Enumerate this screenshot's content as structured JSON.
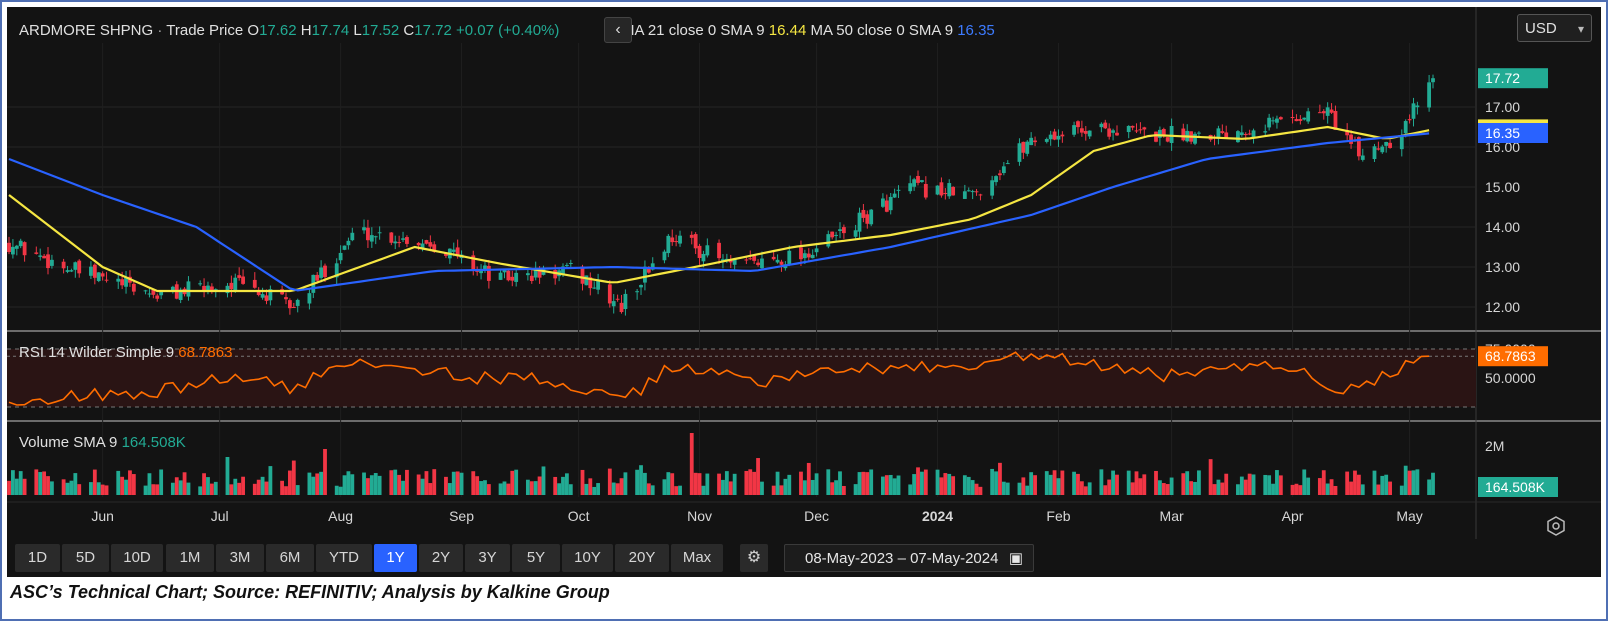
{
  "header": {
    "symbol": "ARDMORE SHPNG",
    "separator": "·",
    "series_type": "Trade Price",
    "ohlc": [
      {
        "key": "O",
        "value": "17.62"
      },
      {
        "key": "H",
        "value": "17.74"
      },
      {
        "key": "L",
        "value": "17.52"
      },
      {
        "key": "C",
        "value": "17.72"
      }
    ],
    "change": "+0.07 (+0.40%)",
    "nav_icon": "chevron-left-icon",
    "ma21_label": "MA 21 close 0 SMA 9",
    "ma21_value": "16.44",
    "ma50_label": "MA 50 close 0 SMA 9",
    "ma50_value": "16.35"
  },
  "currency": "USD",
  "rsi_panel": {
    "label": "RSI 14 Wilder Simple 9",
    "value": "68.7863",
    "levels": [
      "75.0000",
      "50.0000"
    ]
  },
  "volume_panel": {
    "label": "Volume SMA 9",
    "value": "164.508K",
    "axis_label": "2M"
  },
  "price_badges": {
    "close": "17.72",
    "ma21": "16.44",
    "ma50": "16.35"
  },
  "timeframes": [
    "1D",
    "5D",
    "10D",
    "1M",
    "3M",
    "6M",
    "YTD",
    "1Y",
    "2Y",
    "3Y",
    "5Y",
    "10Y",
    "20Y",
    "Max"
  ],
  "active_timeframe": "1Y",
  "date_range": {
    "start": "08-May-2023",
    "end": "07-May-2024"
  },
  "caption": "ASC’s Technical Chart; Source: REFINITIV; Analysis by Kalkine Group",
  "colors": {
    "up": "#22ab94",
    "down": "#f23645",
    "ma21": "#f5e642",
    "ma50": "#2962ff",
    "rsi": "#ff6d00",
    "active": "#2962ff"
  },
  "chart_data": {
    "type": "candlestick",
    "x_range": [
      "2023-05-08",
      "2024-05-07"
    ],
    "x_ticks": [
      "Jun",
      "Jul",
      "Aug",
      "Sep",
      "Oct",
      "Nov",
      "Dec",
      "2024",
      "Feb",
      "Mar",
      "Apr",
      "May"
    ],
    "y_ticks": [
      12.0,
      13.0,
      14.0,
      15.0,
      16.0,
      17.0
    ],
    "ylim": [
      11.3,
      18.0
    ],
    "price_path": [
      {
        "date": "2023-05-08",
        "close": 13.6
      },
      {
        "date": "2023-05-25",
        "close": 12.9
      },
      {
        "date": "2023-06-15",
        "close": 12.3
      },
      {
        "date": "2023-07-05",
        "close": 12.6
      },
      {
        "date": "2023-07-20",
        "close": 12.0
      },
      {
        "date": "2023-08-05",
        "close": 13.9
      },
      {
        "date": "2023-08-25",
        "close": 13.6
      },
      {
        "date": "2023-09-10",
        "close": 12.7
      },
      {
        "date": "2023-09-30",
        "close": 12.9
      },
      {
        "date": "2023-10-12",
        "close": 12.0
      },
      {
        "date": "2023-10-25",
        "close": 13.8
      },
      {
        "date": "2023-11-10",
        "close": 13.0
      },
      {
        "date": "2023-11-30",
        "close": 13.4
      },
      {
        "date": "2023-12-10",
        "close": 14.0
      },
      {
        "date": "2023-12-25",
        "close": 15.0
      },
      {
        "date": "2024-01-10",
        "close": 14.8
      },
      {
        "date": "2024-01-25",
        "close": 16.2
      },
      {
        "date": "2024-02-10",
        "close": 16.5
      },
      {
        "date": "2024-02-25",
        "close": 16.3
      },
      {
        "date": "2024-03-15",
        "close": 16.4
      },
      {
        "date": "2024-03-30",
        "close": 16.7
      },
      {
        "date": "2024-04-10",
        "close": 16.9
      },
      {
        "date": "2024-04-18",
        "close": 15.8
      },
      {
        "date": "2024-04-28",
        "close": 16.3
      },
      {
        "date": "2024-05-07",
        "close": 17.72
      }
    ],
    "series": [
      {
        "name": "MA 21 close 0 SMA 9",
        "last": 16.44,
        "points": [
          {
            "date": "2023-05-08",
            "value": 14.8
          },
          {
            "date": "2023-06-01",
            "value": 13.0
          },
          {
            "date": "2023-06-15",
            "value": 12.4
          },
          {
            "date": "2023-07-20",
            "value": 12.4
          },
          {
            "date": "2023-08-20",
            "value": 13.5
          },
          {
            "date": "2023-09-10",
            "value": 13.1
          },
          {
            "date": "2023-10-10",
            "value": 12.6
          },
          {
            "date": "2023-11-05",
            "value": 13.1
          },
          {
            "date": "2023-11-25",
            "value": 13.5
          },
          {
            "date": "2023-12-20",
            "value": 13.8
          },
          {
            "date": "2024-01-10",
            "value": 14.2
          },
          {
            "date": "2024-01-25",
            "value": 14.8
          },
          {
            "date": "2024-02-10",
            "value": 15.9
          },
          {
            "date": "2024-02-25",
            "value": 16.3
          },
          {
            "date": "2024-03-20",
            "value": 16.2
          },
          {
            "date": "2024-04-10",
            "value": 16.5
          },
          {
            "date": "2024-04-25",
            "value": 16.2
          },
          {
            "date": "2024-05-07",
            "value": 16.44
          }
        ]
      },
      {
        "name": "MA 50 close 0 SMA 9",
        "last": 16.35,
        "points": [
          {
            "date": "2023-05-08",
            "value": 15.7
          },
          {
            "date": "2023-06-01",
            "value": 14.8
          },
          {
            "date": "2023-06-25",
            "value": 14.0
          },
          {
            "date": "2023-07-20",
            "value": 12.4
          },
          {
            "date": "2023-08-25",
            "value": 12.9
          },
          {
            "date": "2023-10-10",
            "value": 13.0
          },
          {
            "date": "2023-11-15",
            "value": 12.9
          },
          {
            "date": "2023-12-20",
            "value": 13.5
          },
          {
            "date": "2024-01-25",
            "value": 14.3
          },
          {
            "date": "2024-02-15",
            "value": 15.0
          },
          {
            "date": "2024-03-10",
            "value": 15.7
          },
          {
            "date": "2024-04-10",
            "value": 16.1
          },
          {
            "date": "2024-05-07",
            "value": 16.35
          }
        ]
      }
    ],
    "rsi": {
      "last": 68.7863,
      "points": [
        {
          "date": "2023-05-08",
          "value": 32
        },
        {
          "date": "2023-06-15",
          "value": 38
        },
        {
          "date": "2023-07-05",
          "value": 52
        },
        {
          "date": "2023-07-20",
          "value": 40
        },
        {
          "date": "2023-08-05",
          "value": 68
        },
        {
          "date": "2023-09-05",
          "value": 50
        },
        {
          "date": "2023-09-25",
          "value": 48
        },
        {
          "date": "2023-10-12",
          "value": 28
        },
        {
          "date": "2023-10-25",
          "value": 60
        },
        {
          "date": "2023-11-20",
          "value": 47
        },
        {
          "date": "2023-12-15",
          "value": 60
        },
        {
          "date": "2024-01-05",
          "value": 57
        },
        {
          "date": "2024-01-25",
          "value": 70
        },
        {
          "date": "2024-02-10",
          "value": 60
        },
        {
          "date": "2024-03-05",
          "value": 50
        },
        {
          "date": "2024-03-25",
          "value": 65
        },
        {
          "date": "2024-04-15",
          "value": 40
        },
        {
          "date": "2024-05-07",
          "value": 68.79
        }
      ]
    },
    "volume": {
      "last_sma": "164.508K",
      "max_label": "2M"
    }
  }
}
